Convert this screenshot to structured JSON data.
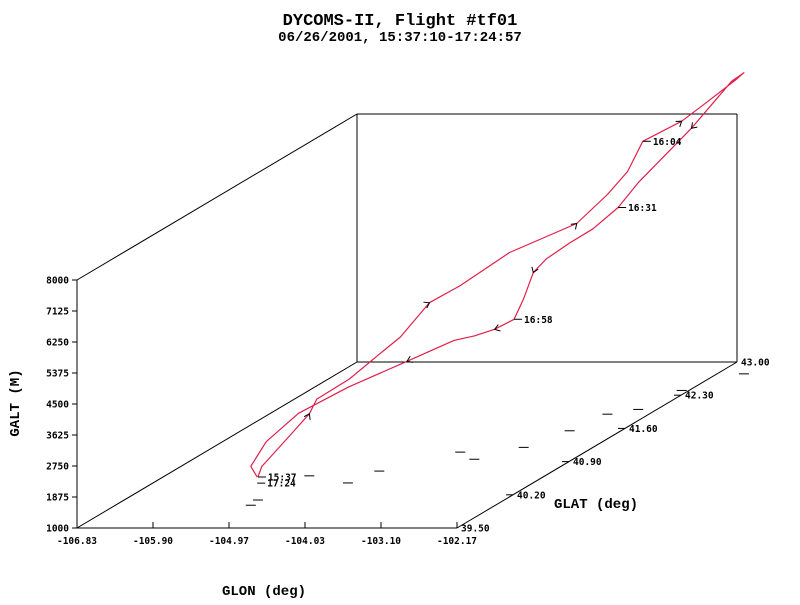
{
  "title": "DYCOMS-II, Flight #tf01",
  "subtitle": "06/26/2001, 15:37:10-17:24:57",
  "chart_data": {
    "type": "line",
    "projection": "3d-oblique",
    "title": "DYCOMS-II, Flight #tf01",
    "subtitle": "06/26/2001, 15:37:10-17:24:57",
    "xlabel": "GLON (deg)",
    "ylabel": "GLAT (deg)",
    "zlabel": "GALT (M)",
    "xlim": [
      -106.83,
      -102.17
    ],
    "ylim": [
      39.5,
      43.0
    ],
    "zlim": [
      1000,
      8000
    ],
    "x_ticks": [
      "-106.83",
      "-105.90",
      "-104.97",
      "-104.03",
      "-103.10",
      "-102.17"
    ],
    "y_ticks": [
      "39.50",
      "40.20",
      "40.90",
      "41.60",
      "42.30",
      "43.00"
    ],
    "z_ticks": [
      "1000",
      "1875",
      "2750",
      "3625",
      "4500",
      "5375",
      "6250",
      "7125",
      "8000"
    ],
    "series_color": "#e0204a",
    "time_labels": [
      "16:04",
      "16:31",
      "16:58",
      "15:37",
      "17:24"
    ],
    "track": [
      {
        "lon": -105.19,
        "lat": 40.09,
        "alt": 1650,
        "label": "15:37"
      },
      {
        "lon": -105.28,
        "lat": 40.23,
        "alt": 1760
      },
      {
        "lon": -105.18,
        "lat": 40.48,
        "alt": 2300
      },
      {
        "lon": -105.06,
        "lat": 40.6,
        "alt": 2750
      },
      {
        "lon": -104.87,
        "lat": 40.5,
        "alt": 3300
      },
      {
        "lon": -104.52,
        "lat": 40.55,
        "alt": 3800
      },
      {
        "lon": -104.3,
        "lat": 40.7,
        "alt": 4300
      },
      {
        "lon": -104.14,
        "lat": 40.8,
        "alt": 4650
      },
      {
        "lon": -103.98,
        "lat": 41.0,
        "alt": 5350
      },
      {
        "lon": -103.7,
        "lat": 41.1,
        "alt": 5700
      },
      {
        "lon": -103.34,
        "lat": 41.35,
        "alt": 6300
      },
      {
        "lon": -102.86,
        "lat": 41.7,
        "alt": 6650
      },
      {
        "lon": -102.68,
        "lat": 41.9,
        "alt": 7200
      },
      {
        "lon": -102.58,
        "lat": 42.05,
        "alt": 7650
      },
      {
        "lon": -102.54,
        "lat": 42.2,
        "alt": 8300,
        "label": "16:04"
      },
      {
        "lon": -102.26,
        "lat": 42.4,
        "alt": 8600
      },
      {
        "lon": -102.09,
        "lat": 42.55,
        "alt": 8950
      },
      {
        "lon": -101.9,
        "lat": 42.7,
        "alt": 9350
      },
      {
        "lon": -101.84,
        "lat": 42.75,
        "alt": 9500
      },
      {
        "lon": -101.96,
        "lat": 42.72,
        "alt": 9300
      },
      {
        "lon": -102.14,
        "lat": 42.4,
        "alt": 8400
      },
      {
        "lon": -102.4,
        "lat": 42.0,
        "alt": 7400
      },
      {
        "lon": -102.5,
        "lat": 41.85,
        "alt": 6900,
        "label": "16:31"
      },
      {
        "lon": -102.66,
        "lat": 41.7,
        "alt": 6500
      },
      {
        "lon": -102.8,
        "lat": 41.55,
        "alt": 6300
      },
      {
        "lon": -102.94,
        "lat": 41.4,
        "alt": 6050
      },
      {
        "lon": -103.0,
        "lat": 41.3,
        "alt": 5800
      },
      {
        "lon": -103.02,
        "lat": 41.2,
        "alt": 5200
      },
      {
        "lon": -103.04,
        "lat": 41.1,
        "alt": 4750,
        "label": "16:58"
      },
      {
        "lon": -103.18,
        "lat": 41.0,
        "alt": 4600
      },
      {
        "lon": -103.38,
        "lat": 40.95,
        "alt": 4480
      },
      {
        "lon": -103.58,
        "lat": 40.9,
        "alt": 4420
      },
      {
        "lon": -103.96,
        "lat": 40.7,
        "alt": 4100
      },
      {
        "lon": -104.44,
        "lat": 40.45,
        "alt": 3700
      },
      {
        "lon": -104.8,
        "lat": 40.2,
        "alt": 3300
      },
      {
        "lon": -105.05,
        "lat": 40.05,
        "alt": 2700
      },
      {
        "lon": -105.17,
        "lat": 39.98,
        "alt": 2100
      },
      {
        "lon": -105.16,
        "lat": 40.05,
        "alt": 1700,
        "label": "17:24"
      }
    ],
    "grid": false,
    "legend": "none"
  }
}
